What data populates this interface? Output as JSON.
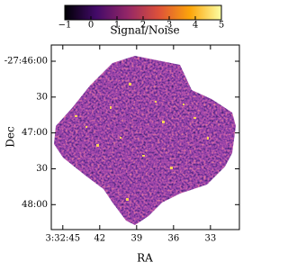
{
  "chart_data": {
    "type": "image",
    "xlabel": "RA",
    "ylabel": "Dec",
    "xlim": [
      53.1914,
      53.1277
    ],
    "xticks": [
      {
        "value": 53.1875,
        "label": "3:32:45"
      },
      {
        "value": 53.175,
        "label": "42"
      },
      {
        "value": 53.1625,
        "label": "39"
      },
      {
        "value": 53.15,
        "label": "36"
      },
      {
        "value": 53.1375,
        "label": "33"
      }
    ],
    "ylim": [
      -27.8058,
      -27.7629
    ],
    "yticks": [
      {
        "value": -27.76667,
        "label": "-27:46:00"
      },
      {
        "value": -27.775,
        "label": "30"
      },
      {
        "value": -27.78333,
        "label": "47:00"
      },
      {
        "value": -27.79167,
        "label": "30"
      },
      {
        "value": -27.8,
        "label": "48:00"
      }
    ],
    "colorbar": {
      "label": "Signal/Noise",
      "lim": [
        -1,
        5
      ],
      "ticks": [
        {
          "value": -1,
          "label": "−1"
        },
        0,
        1,
        2,
        3,
        4,
        5
      ],
      "colors": [
        "#000004",
        "#420a68",
        "#932667",
        "#dd513a",
        "#fca50a",
        "#fcffa4"
      ]
    }
  }
}
